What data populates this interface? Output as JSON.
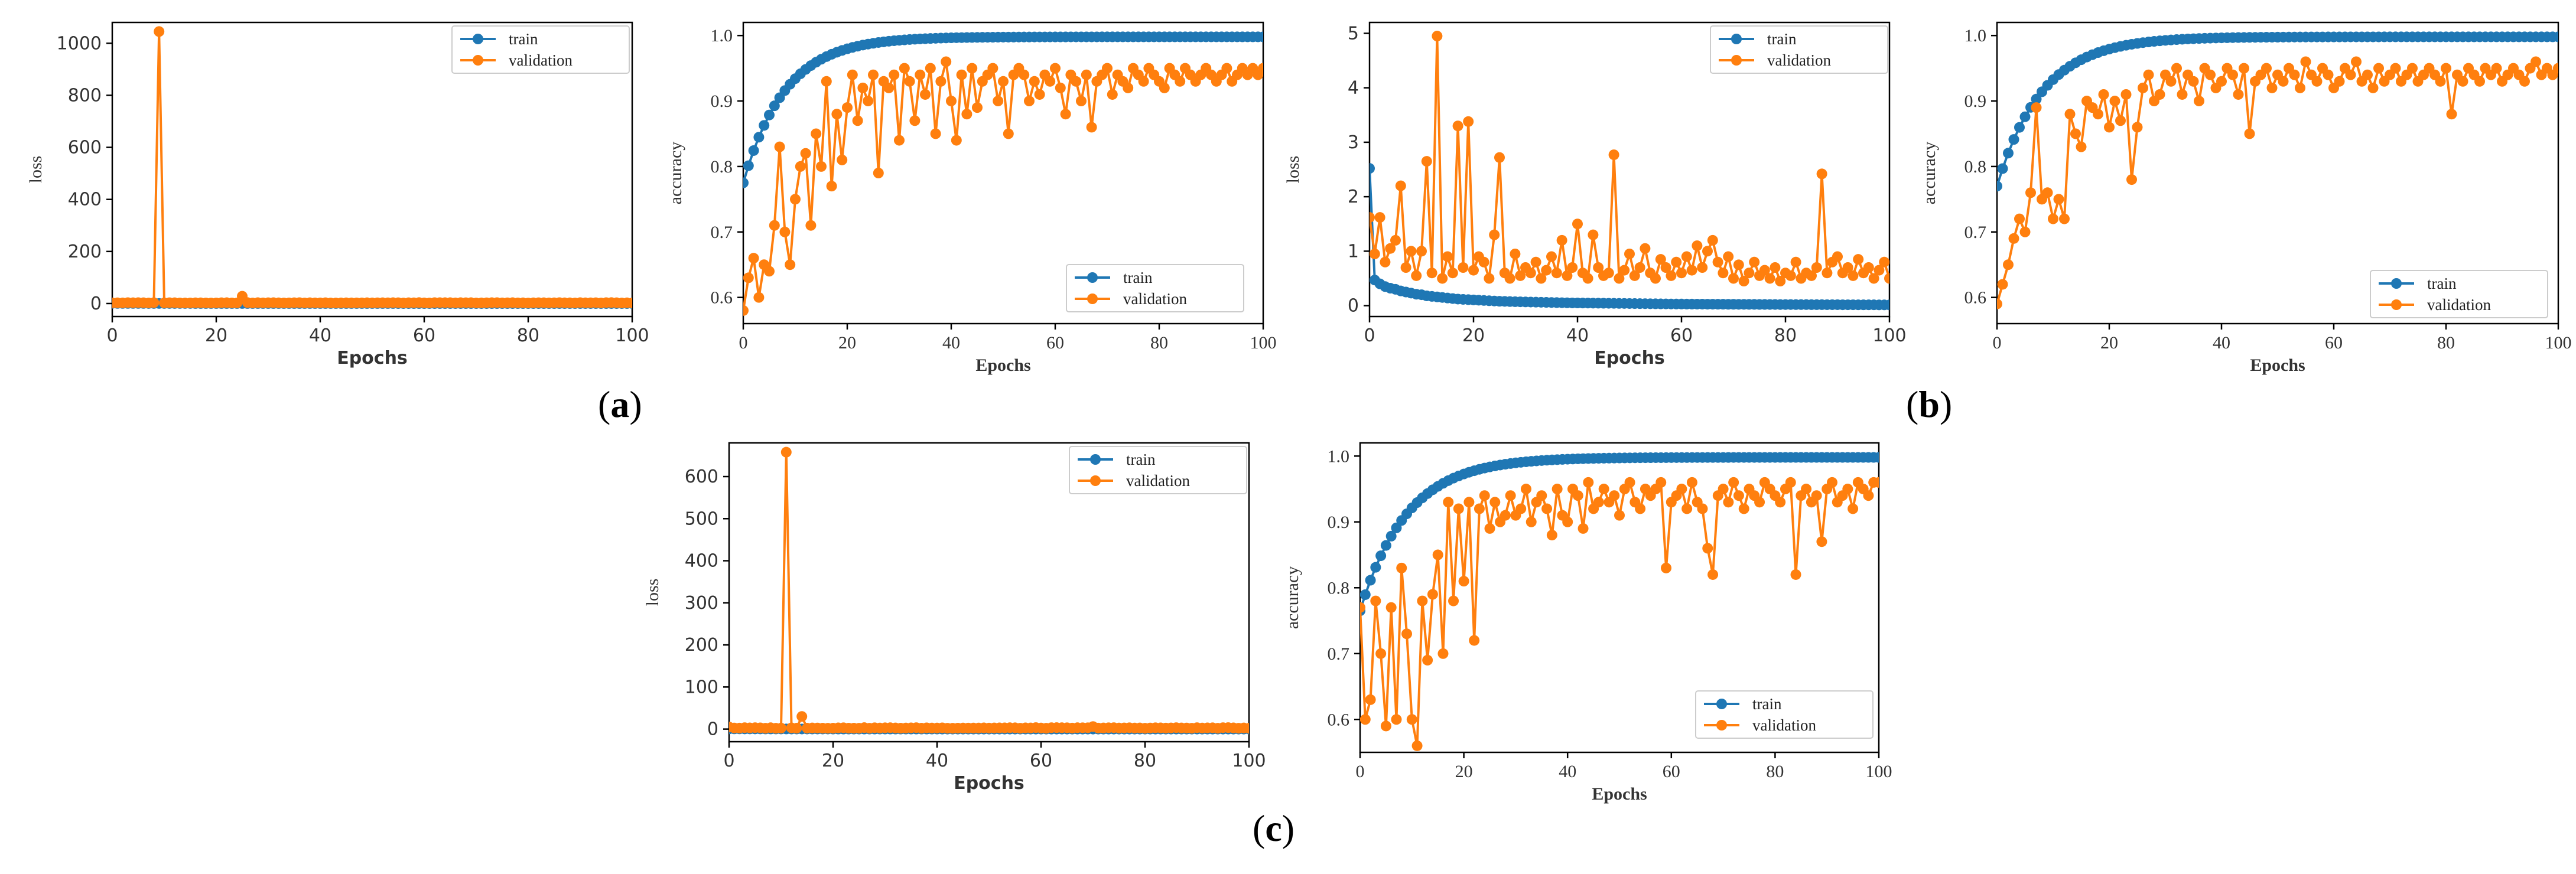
{
  "colors": {
    "train": "#1f77b4",
    "validation": "#ff7f0e"
  },
  "panel_labels": {
    "a": "a",
    "b": "b",
    "c": "c"
  },
  "chart_data": [
    {
      "id": "a-loss",
      "type": "line",
      "xlabel": "Epochs",
      "ylabel": "loss",
      "xlim": [
        0,
        100
      ],
      "ylim": [
        -50,
        1080
      ],
      "xticks": [
        0,
        20,
        40,
        60,
        80,
        100
      ],
      "yticks": [
        0,
        200,
        400,
        600,
        800,
        1000
      ],
      "grid": false,
      "legend": "top-right",
      "series": [
        {
          "name": "train",
          "kind": "gen",
          "gen": "loss_train",
          "p": [
            0.5,
            0.2,
            0.05
          ]
        },
        {
          "name": "validation",
          "kind": "gen",
          "gen": "loss_val",
          "p": [
            2,
            1.5
          ],
          "spikes": [
            [
              9,
              1045
            ],
            [
              25,
              28
            ]
          ]
        }
      ]
    },
    {
      "id": "a-acc",
      "type": "line",
      "xlabel": "Epochs",
      "ylabel": "accuracy",
      "xlim": [
        0,
        100
      ],
      "ylim": [
        0.56,
        1.02
      ],
      "xticks": [
        0,
        20,
        40,
        60,
        80,
        100
      ],
      "yticks": [
        0.6,
        0.7,
        0.8,
        0.9,
        1.0
      ],
      "grid": false,
      "legend": "bottom-right",
      "series": [
        {
          "name": "train",
          "kind": "gen",
          "gen": "acc_train",
          "p": [
            0.775,
            0.998,
            8
          ]
        },
        {
          "name": "validation",
          "kind": "values",
          "values": [
            0.58,
            0.63,
            0.66,
            0.6,
            0.65,
            0.64,
            0.71,
            0.83,
            0.7,
            0.65,
            0.75,
            0.8,
            0.82,
            0.71,
            0.85,
            0.8,
            0.93,
            0.77,
            0.88,
            0.81,
            0.89,
            0.94,
            0.87,
            0.92,
            0.9,
            0.94,
            0.79,
            0.93,
            0.92,
            0.94,
            0.84,
            0.95,
            0.93,
            0.87,
            0.94,
            0.91,
            0.95,
            0.85,
            0.93,
            0.96,
            0.9,
            0.84,
            0.94,
            0.88,
            0.95,
            0.89,
            0.93,
            0.94,
            0.95,
            0.9,
            0.93,
            0.85,
            0.94,
            0.95,
            0.94,
            0.9,
            0.93,
            0.91,
            0.94,
            0.93,
            0.95,
            0.92,
            0.88,
            0.94,
            0.93,
            0.9,
            0.94,
            0.86,
            0.93,
            0.94,
            0.95,
            0.91,
            0.94,
            0.93,
            0.92,
            0.95,
            0.94,
            0.93,
            0.95,
            0.94,
            0.93,
            0.92,
            0.95,
            0.94,
            0.93,
            0.95,
            0.94,
            0.93,
            0.94,
            0.95,
            0.94,
            0.93,
            0.94,
            0.95,
            0.93,
            0.94,
            0.95,
            0.94,
            0.95,
            0.94,
            0.95
          ]
        }
      ]
    },
    {
      "id": "b-loss",
      "type": "line",
      "xlabel": "Epochs",
      "ylabel": "loss",
      "xlim": [
        0,
        100
      ],
      "ylim": [
        -0.2,
        5.2
      ],
      "xticks": [
        0,
        20,
        40,
        60,
        80,
        100
      ],
      "yticks": [
        0,
        1,
        2,
        3,
        4,
        5
      ],
      "grid": false,
      "legend": "top-right",
      "series": [
        {
          "name": "train",
          "kind": "values",
          "values": [
            2.52,
            0.47,
            0.4,
            0.35,
            0.32,
            0.3,
            0.27,
            0.25,
            0.23,
            0.21,
            0.2,
            0.18,
            0.17,
            0.16,
            0.15,
            0.14,
            0.13,
            0.12,
            0.115,
            0.11,
            0.105,
            0.1,
            0.095,
            0.09,
            0.085,
            0.08,
            0.078,
            0.075,
            0.072,
            0.07,
            0.068,
            0.066,
            0.064,
            0.062,
            0.06,
            0.058,
            0.056,
            0.054,
            0.052,
            0.05,
            0.049,
            0.048,
            0.047,
            0.046,
            0.045,
            0.044,
            0.043,
            0.042,
            0.041,
            0.04,
            0.039,
            0.038,
            0.037,
            0.036,
            0.035,
            0.034,
            0.033,
            0.032,
            0.031,
            0.03,
            0.03,
            0.029,
            0.029,
            0.028,
            0.028,
            0.027,
            0.027,
            0.026,
            0.026,
            0.025,
            0.025,
            0.024,
            0.024,
            0.023,
            0.023,
            0.022,
            0.022,
            0.021,
            0.021,
            0.02,
            0.02,
            0.02,
            0.019,
            0.019,
            0.019,
            0.018,
            0.018,
            0.018,
            0.017,
            0.017,
            0.017,
            0.016,
            0.016,
            0.016,
            0.015,
            0.015,
            0.015,
            0.015,
            0.014,
            0.014,
            0.014
          ]
        },
        {
          "name": "validation",
          "kind": "values",
          "values": [
            1.62,
            0.95,
            1.62,
            0.8,
            1.05,
            1.2,
            2.2,
            0.7,
            1.0,
            0.55,
            1.0,
            2.65,
            0.6,
            4.95,
            0.5,
            0.9,
            0.6,
            3.3,
            0.7,
            3.38,
            0.65,
            0.9,
            0.8,
            0.5,
            1.3,
            2.72,
            0.6,
            0.5,
            0.95,
            0.55,
            0.7,
            0.6,
            0.8,
            0.5,
            0.65,
            0.9,
            0.6,
            1.2,
            0.55,
            0.7,
            1.5,
            0.6,
            0.5,
            1.3,
            0.7,
            0.55,
            0.6,
            2.77,
            0.5,
            0.65,
            0.95,
            0.55,
            0.7,
            1.05,
            0.6,
            0.5,
            0.85,
            0.7,
            0.55,
            0.8,
            0.6,
            0.9,
            0.65,
            1.1,
            0.7,
            1.0,
            1.2,
            0.8,
            0.6,
            0.9,
            0.5,
            0.75,
            0.45,
            0.6,
            0.8,
            0.55,
            0.65,
            0.5,
            0.7,
            0.45,
            0.6,
            0.55,
            0.8,
            0.5,
            0.6,
            0.55,
            0.7,
            2.42,
            0.6,
            0.8,
            0.9,
            0.6,
            0.7,
            0.55,
            0.85,
            0.6,
            0.7,
            0.5,
            0.65,
            0.8,
            0.5
          ]
        }
      ]
    },
    {
      "id": "b-acc",
      "type": "line",
      "xlabel": "Epochs",
      "ylabel": "accuracy",
      "xlim": [
        0,
        100
      ],
      "ylim": [
        0.56,
        1.02
      ],
      "xticks": [
        0,
        20,
        40,
        60,
        80,
        100
      ],
      "yticks": [
        0.6,
        0.7,
        0.8,
        0.9,
        1.0
      ],
      "grid": false,
      "legend": "bottom-right",
      "series": [
        {
          "name": "train",
          "kind": "gen",
          "gen": "acc_train",
          "p": [
            0.77,
            0.998,
            8
          ]
        },
        {
          "name": "validation",
          "kind": "values",
          "values": [
            0.59,
            0.62,
            0.65,
            0.69,
            0.72,
            0.7,
            0.76,
            0.89,
            0.75,
            0.76,
            0.72,
            0.75,
            0.72,
            0.88,
            0.85,
            0.83,
            0.9,
            0.89,
            0.88,
            0.91,
            0.86,
            0.9,
            0.87,
            0.91,
            0.78,
            0.86,
            0.92,
            0.94,
            0.9,
            0.91,
            0.94,
            0.93,
            0.95,
            0.91,
            0.94,
            0.93,
            0.9,
            0.95,
            0.94,
            0.92,
            0.93,
            0.95,
            0.94,
            0.91,
            0.95,
            0.85,
            0.93,
            0.94,
            0.95,
            0.92,
            0.94,
            0.93,
            0.95,
            0.94,
            0.92,
            0.96,
            0.94,
            0.93,
            0.95,
            0.94,
            0.92,
            0.93,
            0.95,
            0.94,
            0.96,
            0.93,
            0.94,
            0.92,
            0.95,
            0.93,
            0.94,
            0.95,
            0.93,
            0.94,
            0.95,
            0.93,
            0.94,
            0.95,
            0.94,
            0.93,
            0.95,
            0.88,
            0.94,
            0.93,
            0.95,
            0.94,
            0.93,
            0.95,
            0.94,
            0.95,
            0.93,
            0.94,
            0.95,
            0.94,
            0.93,
            0.95,
            0.96,
            0.94,
            0.95,
            0.94,
            0.95
          ]
        }
      ]
    },
    {
      "id": "c-loss",
      "type": "line",
      "xlabel": "Epochs",
      "ylabel": "loss",
      "xlim": [
        0,
        100
      ],
      "ylim": [
        -30,
        680
      ],
      "xticks": [
        0,
        20,
        40,
        60,
        80,
        100
      ],
      "yticks": [
        0,
        100,
        200,
        300,
        400,
        500,
        600
      ],
      "grid": false,
      "legend": "top-right",
      "series": [
        {
          "name": "train",
          "kind": "gen",
          "gen": "loss_train",
          "p": [
            0.5,
            0.2,
            0.05
          ]
        },
        {
          "name": "validation",
          "kind": "gen",
          "gen": "loss_val",
          "p": [
            2,
            1.5
          ],
          "spikes": [
            [
              0,
              5
            ],
            [
              11,
              658
            ],
            [
              14,
              30
            ],
            [
              70,
              6
            ]
          ]
        }
      ]
    },
    {
      "id": "c-acc",
      "type": "line",
      "xlabel": "Epochs",
      "ylabel": "accuracy",
      "xlim": [
        0,
        100
      ],
      "ylim": [
        0.55,
        1.02
      ],
      "xticks": [
        0,
        20,
        40,
        60,
        80,
        100
      ],
      "yticks": [
        0.6,
        0.7,
        0.8,
        0.9,
        1.0
      ],
      "grid": false,
      "legend": "bottom-right",
      "series": [
        {
          "name": "train",
          "kind": "gen",
          "gen": "acc_train",
          "p": [
            0.765,
            0.998,
            9
          ]
        },
        {
          "name": "validation",
          "kind": "values",
          "values": [
            0.77,
            0.6,
            0.63,
            0.78,
            0.7,
            0.59,
            0.77,
            0.6,
            0.83,
            0.73,
            0.6,
            0.56,
            0.78,
            0.69,
            0.79,
            0.85,
            0.7,
            0.93,
            0.78,
            0.92,
            0.81,
            0.93,
            0.72,
            0.92,
            0.94,
            0.89,
            0.93,
            0.9,
            0.91,
            0.94,
            0.91,
            0.92,
            0.95,
            0.9,
            0.93,
            0.94,
            0.92,
            0.88,
            0.95,
            0.91,
            0.9,
            0.95,
            0.94,
            0.89,
            0.96,
            0.92,
            0.93,
            0.95,
            0.93,
            0.94,
            0.91,
            0.95,
            0.96,
            0.93,
            0.92,
            0.95,
            0.94,
            0.95,
            0.96,
            0.83,
            0.93,
            0.94,
            0.95,
            0.92,
            0.96,
            0.93,
            0.92,
            0.86,
            0.82,
            0.94,
            0.95,
            0.93,
            0.96,
            0.94,
            0.92,
            0.95,
            0.94,
            0.93,
            0.96,
            0.95,
            0.94,
            0.93,
            0.95,
            0.96,
            0.82,
            0.94,
            0.95,
            0.93,
            0.94,
            0.87,
            0.95,
            0.96,
            0.93,
            0.94,
            0.95,
            0.92,
            0.96,
            0.95,
            0.94,
            0.96,
            0.96
          ]
        }
      ]
    }
  ]
}
